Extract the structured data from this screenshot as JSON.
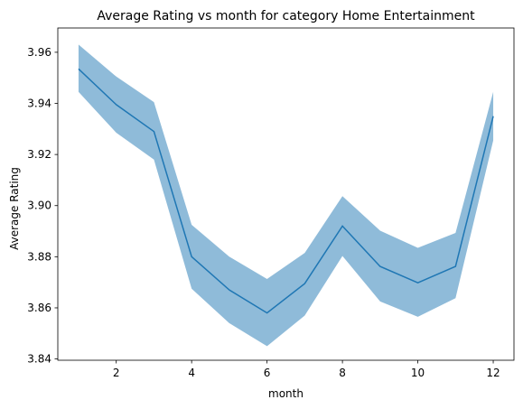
{
  "chart_data": {
    "type": "line",
    "title": "Average Rating vs month for category Home Entertainment",
    "xlabel": "month",
    "ylabel": "Average Rating",
    "xlim": [
      0.45,
      12.55
    ],
    "ylim": [
      3.8395,
      3.9695
    ],
    "xticks": [
      2,
      4,
      6,
      8,
      10,
      12
    ],
    "yticks": [
      3.84,
      3.86,
      3.88,
      3.9,
      3.92,
      3.94,
      3.96
    ],
    "ytick_labels": [
      "3.84",
      "3.86",
      "3.88",
      "3.90",
      "3.92",
      "3.94",
      "3.96"
    ],
    "grid": false,
    "series": [
      {
        "x": [
          1,
          2,
          3,
          4,
          5,
          6,
          7,
          8,
          9,
          10,
          11,
          12
        ],
        "y": [
          3.9535,
          3.9395,
          3.929,
          3.88,
          3.867,
          3.858,
          3.8695,
          3.892,
          3.8762,
          3.8698,
          3.8762,
          3.935
        ],
        "ci_lower": [
          3.9445,
          3.9285,
          3.918,
          3.8675,
          3.854,
          3.845,
          3.857,
          3.8803,
          3.8625,
          3.8565,
          3.8638,
          3.9255
        ],
        "ci_upper": [
          3.963,
          3.9505,
          3.9405,
          3.8925,
          3.88,
          3.8713,
          3.8815,
          3.9037,
          3.8902,
          3.8835,
          3.8893,
          3.9445
        ],
        "color": "#1f77b4",
        "band_color": "#1f77b4",
        "band_opacity": 0.5
      }
    ]
  }
}
